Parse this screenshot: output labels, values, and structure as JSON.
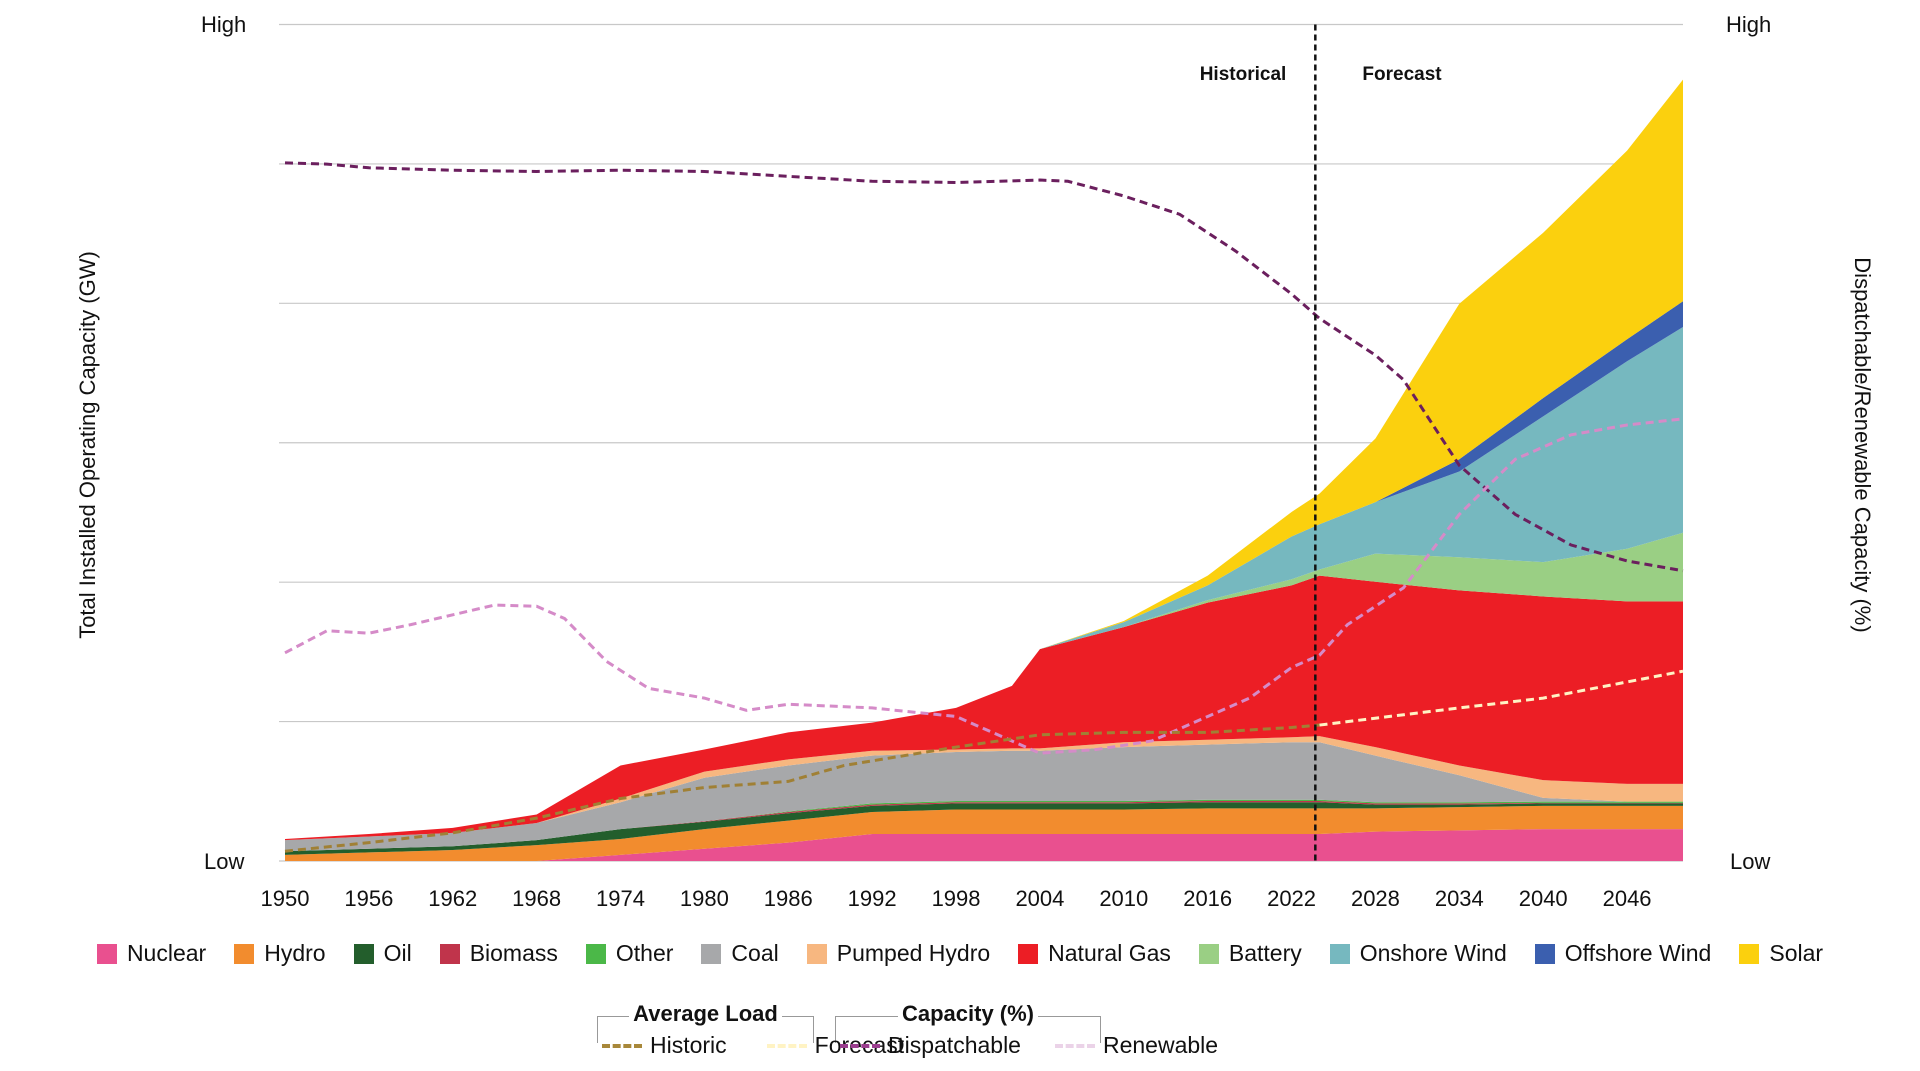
{
  "chart_data": {
    "type": "area",
    "title": "",
    "ylabel_left": "Total Installed Operating Capacity (GW)",
    "ylabel_right": "Dispatchable/Renewable Capacity (%)",
    "y_left_ticks": {
      "high": "High",
      "low": "Low"
    },
    "y_right_ticks": {
      "high": "High",
      "low": "Low"
    },
    "ylim": [
      0,
      683
    ],
    "xlim": [
      1950,
      2050
    ],
    "grid": true,
    "x_tick_labels": [
      "1950",
      "1956",
      "1962",
      "1968",
      "1974",
      "1980",
      "1986",
      "1992",
      "1998",
      "2004",
      "2010",
      "2016",
      "2022",
      "2028",
      "2034",
      "2040",
      "2046"
    ],
    "divider": {
      "year": 2023.7,
      "left_label": "Historical",
      "right_label": "Forecast"
    },
    "x": [
      1950,
      1956,
      1962,
      1968,
      1974,
      1980,
      1986,
      1992,
      1998,
      2002,
      2004,
      2010,
      2016,
      2022,
      2024,
      2028,
      2034,
      2040,
      2046,
      2050
    ],
    "stacked_series": [
      {
        "name": "Nuclear",
        "color": "#E9508F",
        "values": [
          0,
          0,
          0,
          0,
          5,
          10,
          15,
          22,
          22,
          22,
          22,
          22,
          22,
          22,
          22,
          24,
          25,
          26,
          26,
          26
        ]
      },
      {
        "name": "Hydro",
        "color": "#F28C2E",
        "values": [
          5,
          7,
          9,
          13,
          13,
          16,
          18,
          18,
          20,
          20,
          20,
          20,
          21,
          21,
          21,
          19,
          19,
          19,
          19,
          19
        ]
      },
      {
        "name": "Oil",
        "color": "#235E2C",
        "values": [
          3,
          3,
          3,
          4,
          8,
          6,
          6,
          5,
          5,
          5,
          5,
          5,
          5,
          5,
          5,
          3,
          2,
          2,
          2,
          2
        ]
      },
      {
        "name": "Biomass",
        "color": "#C0344B",
        "values": [
          0,
          0,
          0,
          0,
          0,
          0.5,
          1,
          1,
          1,
          1,
          1,
          1,
          1,
          1,
          1,
          1,
          1,
          0.5,
          0.5,
          0.5
        ]
      },
      {
        "name": "Other",
        "color": "#4BB848",
        "values": [
          0,
          0,
          0,
          0,
          0,
          0,
          0.5,
          1,
          1,
          1,
          1,
          1,
          1,
          1,
          1,
          1,
          1,
          1,
          1,
          1
        ]
      },
      {
        "name": "Coal",
        "color": "#A7A8AA",
        "values": [
          9,
          10,
          11,
          14,
          22,
          35.5,
          37.5,
          39,
          40,
          41,
          41,
          44,
          45,
          47,
          47,
          38,
          22,
          3,
          0,
          0
        ]
      },
      {
        "name": "Pumped Hydro",
        "color": "#F7B780",
        "values": [
          0,
          0,
          0,
          0,
          3,
          5,
          5,
          4,
          2,
          2,
          2,
          4,
          4,
          4,
          5,
          7,
          8,
          14.5,
          14.5,
          14.5
        ]
      },
      {
        "name": "Natural Gas",
        "color": "#EC1E25",
        "values": [
          1,
          2,
          4,
          7,
          27,
          18,
          22,
          23,
          34,
          51,
          81,
          94,
          112,
          124,
          131,
          135,
          143,
          150,
          149,
          149
        ]
      },
      {
        "name": "Battery",
        "color": "#9ACF84",
        "values": [
          0,
          0,
          0,
          0,
          0,
          0,
          0,
          0,
          0,
          0,
          0,
          0,
          2,
          5,
          5,
          23,
          27,
          28,
          43,
          56
        ]
      },
      {
        "name": "Onshore Wind",
        "color": "#76B8BF",
        "values": [
          0,
          0,
          0,
          0,
          0,
          0,
          0,
          0,
          0,
          0,
          0,
          4,
          12,
          35,
          37,
          42,
          70,
          119,
          153,
          168
        ]
      },
      {
        "name": "Offshore Wind",
        "color": "#3B5FAF",
        "values": [
          0,
          0,
          0,
          0,
          0,
          0,
          0,
          0,
          0,
          0,
          0,
          0,
          0,
          0,
          0,
          0,
          10,
          15,
          18,
          21
        ]
      },
      {
        "name": "Solar",
        "color": "#FBD00E",
        "values": [
          0,
          0,
          0,
          0,
          0,
          0,
          0,
          0,
          0,
          0,
          0,
          1,
          8,
          20,
          25,
          52,
          127,
          135,
          154,
          181
        ]
      }
    ],
    "lines": [
      {
        "name": "Dispatchable",
        "group": "Capacity (%)",
        "color": "#6B1F5E",
        "legend_color": "#9B3D8F",
        "axis": "right",
        "x": [
          1950,
          1953,
          1956,
          1959,
          1962,
          1968,
          1974,
          1980,
          1986,
          1992,
          1998,
          2004,
          2006,
          2010,
          2014,
          2018,
          2022,
          2024,
          2028,
          2030,
          2034,
          2038,
          2042,
          2046,
          2050
        ],
        "y": [
          570,
          569,
          566,
          565,
          564,
          563,
          564,
          563,
          559,
          555,
          554,
          556,
          555,
          543,
          528,
          498,
          463,
          443,
          413,
          393,
          323,
          283,
          258,
          245,
          237
        ]
      },
      {
        "name": "Renewable",
        "group": "Capacity (%)",
        "color": "#D58BC8",
        "legend_color": "#EBD3E8",
        "axis": "right",
        "x": [
          1950,
          1953,
          1956,
          1959,
          1962,
          1965,
          1968,
          1970,
          1973,
          1976,
          1980,
          1983,
          1986,
          1992,
          1998,
          2000,
          2004,
          2008,
          2012,
          2016,
          2019,
          2022,
          2024,
          2026,
          2030,
          2034,
          2038,
          2042,
          2046,
          2050
        ],
        "y": [
          170,
          188,
          186,
          193,
          201,
          209,
          208,
          198,
          163,
          141,
          133,
          123,
          128,
          125,
          118,
          108,
          88,
          91,
          98,
          118,
          133,
          158,
          168,
          193,
          223,
          283,
          328,
          348,
          356,
          361
        ]
      },
      {
        "name": "Historic",
        "group": "Average Load",
        "color": "#A08035",
        "legend_color": "#A8883A",
        "axis": "left",
        "x": [
          1950,
          1956,
          1962,
          1968,
          1974,
          1980,
          1986,
          1990,
          1998,
          2004,
          2010,
          2016,
          2022,
          2024
        ],
        "y": [
          8,
          15,
          23,
          35,
          51,
          60,
          65,
          78,
          93,
          103,
          105,
          105,
          109,
          111
        ]
      },
      {
        "name": "Forecast",
        "group": "Average Load",
        "color": "#FFF3C4",
        "legend_color": "#FFF3C4",
        "axis": "left",
        "x": [
          2024,
          2034,
          2040,
          2050
        ],
        "y": [
          111,
          125,
          133,
          155
        ]
      }
    ],
    "legend_placement": "bottom",
    "line_legend_groups": [
      "Average Load",
      "Capacity (%)"
    ]
  }
}
